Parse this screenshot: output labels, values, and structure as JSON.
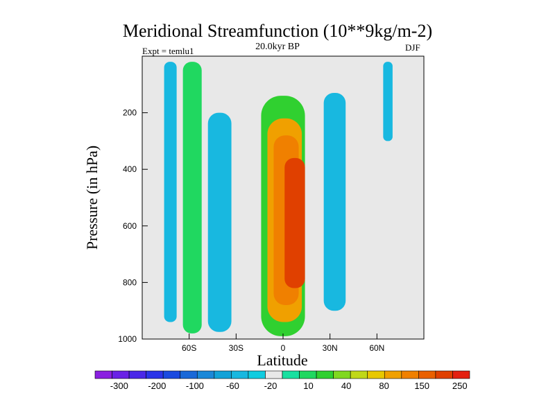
{
  "chart_data": {
    "type": "contour",
    "title": "Meridional Streamfunction (10**9kg/m-2)",
    "subtitle": "20.0kyr BP",
    "left_annotation": "Expt = temlu1",
    "right_annotation": "DJF",
    "xlabel": "Latitude",
    "ylabel": "Pressure (in hPa)",
    "xlim": [
      -90,
      90
    ],
    "ylim": [
      1000,
      0
    ],
    "x_ticks": [
      {
        "value": -60,
        "label": "60S"
      },
      {
        "value": -30,
        "label": "30S"
      },
      {
        "value": 0,
        "label": "0"
      },
      {
        "value": 30,
        "label": "30N"
      },
      {
        "value": 60,
        "label": "60N"
      }
    ],
    "y_ticks": [
      {
        "value": 200,
        "label": "200"
      },
      {
        "value": 400,
        "label": "400"
      },
      {
        "value": 600,
        "label": "600"
      },
      {
        "value": 800,
        "label": "800"
      },
      {
        "value": 1000,
        "label": "1000"
      }
    ],
    "colorbar": {
      "colors": [
        "#8a20e0",
        "#6a22e6",
        "#4a28e8",
        "#2a34e8",
        "#1a4ae0",
        "#1868d8",
        "#1a88d8",
        "#12a2d8",
        "#18b8e0",
        "#10cce0",
        "#e8e8e8",
        "#18e0a0",
        "#20d860",
        "#30d030",
        "#80d820",
        "#c0d818",
        "#e8c800",
        "#f0a000",
        "#f08000",
        "#ea6000",
        "#e04000",
        "#e42010"
      ],
      "labels": [
        "-300",
        "-200",
        "-100",
        "-60",
        "-20",
        "10",
        "40",
        "80",
        "150",
        "250"
      ]
    },
    "cells": [
      {
        "lon": [
          -76,
          -68
        ],
        "p": [
          20,
          940
        ],
        "level": "-20"
      },
      {
        "lon": [
          -64,
          -52
        ],
        "p": [
          20,
          980
        ],
        "level": "20"
      },
      {
        "lon": [
          -48,
          -33
        ],
        "p": [
          200,
          975
        ],
        "level": "-20"
      },
      {
        "lon": [
          -14,
          14
        ],
        "p": [
          140,
          990
        ],
        "level": "40"
      },
      {
        "lon": [
          -10,
          12
        ],
        "p": [
          220,
          940
        ],
        "level": "80"
      },
      {
        "lon": [
          -6,
          10
        ],
        "p": [
          280,
          880
        ],
        "level": "150"
      },
      {
        "lon": [
          1,
          14
        ],
        "p": [
          360,
          820
        ],
        "level": "250"
      },
      {
        "lon": [
          26,
          40
        ],
        "p": [
          130,
          900
        ],
        "level": "-20"
      },
      {
        "lon": [
          64,
          70
        ],
        "p": [
          20,
          300
        ],
        "level": "-20"
      }
    ]
  }
}
